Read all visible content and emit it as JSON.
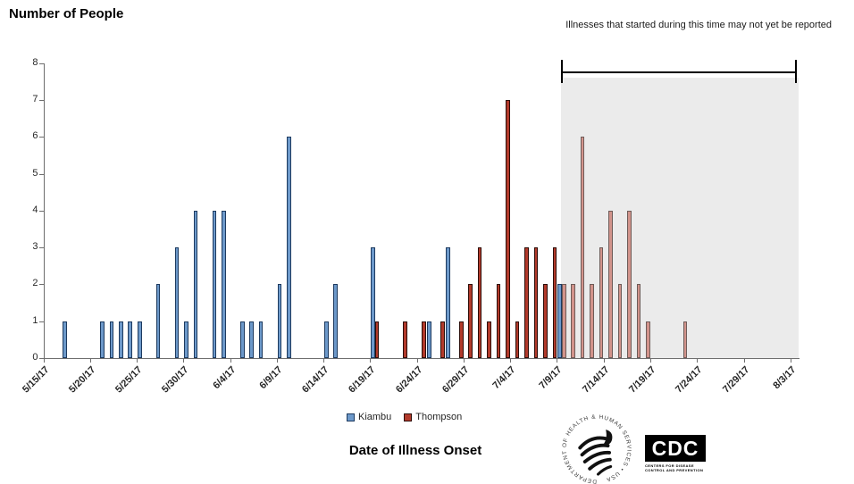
{
  "chart_data": {
    "type": "bar",
    "title": "Number of People",
    "xlabel": "Date of Illness Onset",
    "ylabel": "",
    "ylim": [
      0,
      8
    ],
    "y_ticks": [
      0,
      1,
      2,
      3,
      4,
      5,
      6,
      7,
      8
    ],
    "x_tick_labels": [
      "5/15/17",
      "5/20/17",
      "5/25/17",
      "5/30/17",
      "6/4/17",
      "6/9/17",
      "6/14/17",
      "6/19/17",
      "6/24/17",
      "6/29/17",
      "7/4/17",
      "7/9/17",
      "7/14/17",
      "7/19/17",
      "7/24/17",
      "7/29/17",
      "8/3/17"
    ],
    "x_axis_start_date": "5/15/17",
    "x_axis_end_date": "8/3/17",
    "grid": "off",
    "legend_position": "bottom-center",
    "annotation": "Illnesses that started during this time may not yet be reported",
    "not_yet_reported_region": {
      "start_date": "7/9/17",
      "end_date": "8/3/17",
      "fill": "#ebebeb"
    },
    "series": [
      {
        "name": "Kiambu",
        "fill": "#6d99ca",
        "border": "#1d3a5f",
        "points": [
          {
            "date": "5/17/17",
            "value": 1
          },
          {
            "date": "5/21/17",
            "value": 1
          },
          {
            "date": "5/22/17",
            "value": 1
          },
          {
            "date": "5/23/17",
            "value": 1
          },
          {
            "date": "5/24/17",
            "value": 1
          },
          {
            "date": "5/25/17",
            "value": 1
          },
          {
            "date": "5/27/17",
            "value": 2
          },
          {
            "date": "5/29/17",
            "value": 3
          },
          {
            "date": "5/30/17",
            "value": 1
          },
          {
            "date": "5/31/17",
            "value": 4
          },
          {
            "date": "6/2/17",
            "value": 4
          },
          {
            "date": "6/3/17",
            "value": 4
          },
          {
            "date": "6/5/17",
            "value": 1
          },
          {
            "date": "6/6/17",
            "value": 1
          },
          {
            "date": "6/7/17",
            "value": 1
          },
          {
            "date": "6/9/17",
            "value": 2
          },
          {
            "date": "6/10/17",
            "value": 6
          },
          {
            "date": "6/14/17",
            "value": 1
          },
          {
            "date": "6/15/17",
            "value": 2
          },
          {
            "date": "6/19/17",
            "value": 3
          },
          {
            "date": "6/25/17",
            "value": 1
          },
          {
            "date": "6/27/17",
            "value": 3
          },
          {
            "date": "7/9/17",
            "value": 2
          }
        ]
      },
      {
        "name": "Thompson",
        "fill": "#b23a2b",
        "border": "#2d0d08",
        "fill_in_shaded_region": "#d2938b",
        "border_in_shaded_region": "#6e5b58",
        "points": [
          {
            "date": "6/19/17",
            "value": 1
          },
          {
            "date": "6/22/17",
            "value": 1
          },
          {
            "date": "6/24/17",
            "value": 1
          },
          {
            "date": "6/26/17",
            "value": 1
          },
          {
            "date": "6/28/17",
            "value": 1
          },
          {
            "date": "6/29/17",
            "value": 2
          },
          {
            "date": "6/30/17",
            "value": 3
          },
          {
            "date": "7/1/17",
            "value": 1
          },
          {
            "date": "7/2/17",
            "value": 2
          },
          {
            "date": "7/3/17",
            "value": 7
          },
          {
            "date": "7/4/17",
            "value": 1
          },
          {
            "date": "7/5/17",
            "value": 3
          },
          {
            "date": "7/6/17",
            "value": 3
          },
          {
            "date": "7/7/17",
            "value": 2
          },
          {
            "date": "7/8/17",
            "value": 3
          },
          {
            "date": "7/9/17",
            "value": 2
          },
          {
            "date": "7/10/17",
            "value": 2
          },
          {
            "date": "7/11/17",
            "value": 6
          },
          {
            "date": "7/12/17",
            "value": 2
          },
          {
            "date": "7/13/17",
            "value": 3
          },
          {
            "date": "7/14/17",
            "value": 4
          },
          {
            "date": "7/15/17",
            "value": 2
          },
          {
            "date": "7/16/17",
            "value": 4
          },
          {
            "date": "7/17/17",
            "value": 2
          },
          {
            "date": "7/18/17",
            "value": 1
          },
          {
            "date": "7/22/17",
            "value": 1
          }
        ]
      }
    ]
  },
  "legend": [
    {
      "label": "Kiambu",
      "color": "#6d99ca"
    },
    {
      "label": "Thompson",
      "color": "#b23a2b"
    }
  ],
  "colors": {
    "axis": "#6e6e6e",
    "shade": "#ebebeb",
    "bracket": "#000000"
  },
  "footer": {
    "hhs_circular_text": "DEPARTMENT OF HEALTH & HUMAN SERVICES • USA",
    "cdc_letters": "CDC",
    "cdc_caption_line1": "CENTERS FOR DISEASE",
    "cdc_caption_line2": "CONTROL AND PREVENTION"
  }
}
